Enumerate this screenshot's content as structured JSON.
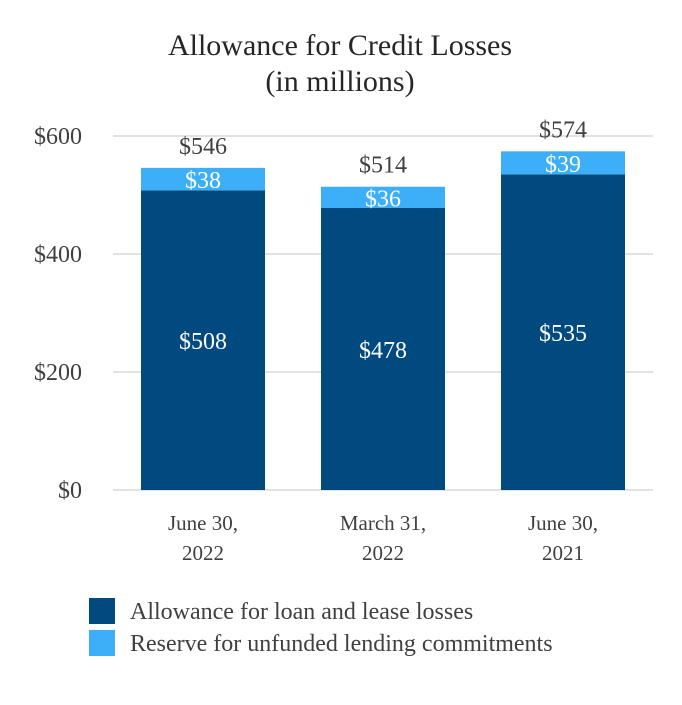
{
  "chart_data": {
    "type": "bar",
    "stacked": true,
    "title": "Allowance for Credit Losses",
    "subtitle": "(in millions)",
    "categories": [
      [
        "June 30,",
        "2022"
      ],
      [
        "March 31,",
        "2022"
      ],
      [
        "June 30,",
        "2021"
      ]
    ],
    "series": [
      {
        "name": "Allowance for loan and lease losses",
        "color": "#004a80",
        "values": [
          508,
          478,
          535
        ],
        "labels": [
          "$508",
          "$478",
          "$535"
        ]
      },
      {
        "name": "Reserve for unfunded lending commitments",
        "color": "#3daef8",
        "values": [
          38,
          36,
          39
        ],
        "labels": [
          "$38",
          "$36",
          "$39"
        ]
      }
    ],
    "totals": [
      546,
      514,
      574
    ],
    "total_labels": [
      "$546",
      "$514",
      "$574"
    ],
    "y_ticks": [
      0,
      200,
      400,
      600
    ],
    "y_tick_labels": [
      "$0",
      "$200",
      "$400",
      "$600"
    ],
    "ylim": [
      0,
      600
    ],
    "grid": true,
    "legend_position": "bottom",
    "colors": {
      "grid": "#d9d9d9",
      "axis_text": "#404040",
      "title_text": "#262626",
      "inner_label": "#ffffff"
    }
  }
}
